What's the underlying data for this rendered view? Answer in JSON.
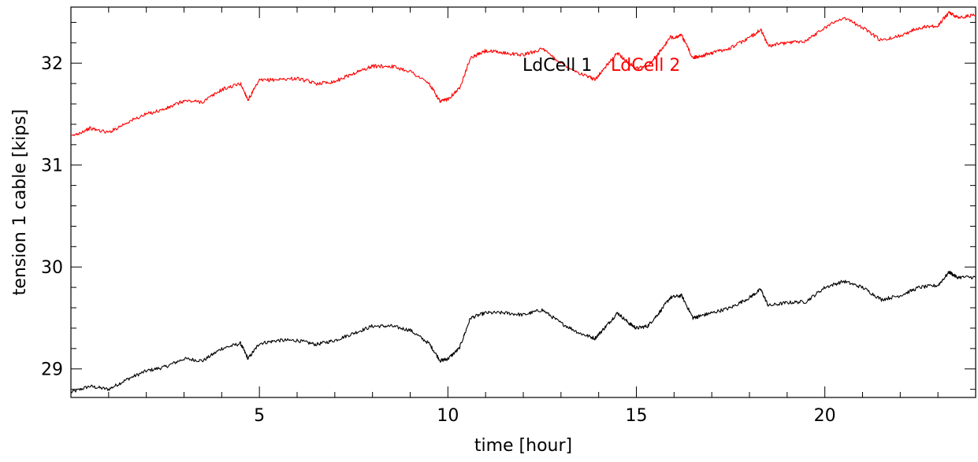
{
  "chart_data": {
    "type": "line",
    "title": "",
    "xlabel": "time [hour]",
    "ylabel": "tension 1 cable [kips]",
    "xlim": [
      0,
      24
    ],
    "ylim": [
      28.72,
      32.55
    ],
    "xticks": [
      5,
      10,
      15,
      20
    ],
    "xtick_labels": [
      "5",
      "10",
      "15",
      "20"
    ],
    "yticks": [
      29,
      30,
      31,
      32
    ],
    "ytick_labels": [
      "29",
      "30",
      "31",
      "32"
    ],
    "grid": false,
    "legend_position": "top-center",
    "series": [
      {
        "name": "LdCell 1",
        "color": "#000000",
        "x": [
          0,
          0.5,
          1.0,
          1.5,
          2.0,
          2.5,
          3.0,
          3.5,
          4.0,
          4.5,
          4.7,
          5.0,
          5.5,
          6.0,
          6.5,
          7.0,
          7.5,
          8.0,
          8.5,
          9.0,
          9.5,
          9.8,
          10.0,
          10.3,
          10.6,
          11.0,
          11.5,
          12.0,
          12.5,
          13.0,
          13.5,
          13.9,
          14.2,
          14.5,
          14.8,
          15.0,
          15.3,
          15.6,
          15.9,
          16.2,
          16.5,
          16.7,
          17.0,
          17.5,
          18.0,
          18.3,
          18.5,
          19.0,
          19.5,
          20.0,
          20.5,
          21.0,
          21.5,
          22.0,
          22.5,
          23.0,
          23.3,
          23.5,
          24.0
        ],
        "values": [
          28.77,
          28.83,
          28.8,
          28.9,
          28.98,
          29.02,
          29.1,
          29.08,
          29.2,
          29.25,
          29.1,
          29.25,
          29.28,
          29.28,
          29.24,
          29.28,
          29.35,
          29.42,
          29.42,
          29.38,
          29.25,
          29.08,
          29.1,
          29.2,
          29.5,
          29.55,
          29.55,
          29.53,
          29.58,
          29.45,
          29.35,
          29.3,
          29.42,
          29.55,
          29.45,
          29.4,
          29.42,
          29.55,
          29.7,
          29.72,
          29.5,
          29.52,
          29.55,
          29.6,
          29.7,
          29.78,
          29.62,
          29.65,
          29.66,
          29.8,
          29.86,
          29.8,
          29.68,
          29.72,
          29.8,
          29.82,
          29.95,
          29.9,
          29.9
        ]
      },
      {
        "name": "LdCell 2",
        "color": "#ff0000",
        "x": [
          0,
          0.5,
          1.0,
          1.5,
          2.0,
          2.5,
          3.0,
          3.5,
          4.0,
          4.5,
          4.7,
          5.0,
          5.5,
          6.0,
          6.5,
          7.0,
          7.5,
          8.0,
          8.5,
          9.0,
          9.5,
          9.8,
          10.0,
          10.3,
          10.6,
          11.0,
          11.5,
          12.0,
          12.5,
          13.0,
          13.5,
          13.9,
          14.2,
          14.5,
          14.8,
          15.0,
          15.3,
          15.6,
          15.9,
          16.2,
          16.5,
          16.7,
          17.0,
          17.5,
          18.0,
          18.3,
          18.5,
          19.0,
          19.5,
          20.0,
          20.5,
          21.0,
          21.5,
          22.0,
          22.5,
          23.0,
          23.3,
          23.5,
          24.0
        ],
        "values": [
          31.28,
          31.36,
          31.32,
          31.42,
          31.5,
          31.55,
          31.63,
          31.62,
          31.74,
          31.8,
          31.64,
          31.83,
          31.84,
          31.85,
          31.8,
          31.82,
          31.9,
          31.97,
          31.97,
          31.92,
          31.8,
          31.62,
          31.65,
          31.75,
          32.05,
          32.12,
          32.1,
          32.08,
          32.14,
          32.0,
          31.9,
          31.84,
          31.97,
          32.1,
          32.0,
          31.95,
          31.97,
          32.1,
          32.25,
          32.27,
          32.05,
          32.07,
          32.1,
          32.15,
          32.25,
          32.33,
          32.17,
          32.2,
          32.22,
          32.35,
          32.45,
          32.35,
          32.22,
          32.27,
          32.35,
          32.37,
          32.5,
          32.45,
          32.47
        ]
      }
    ]
  }
}
